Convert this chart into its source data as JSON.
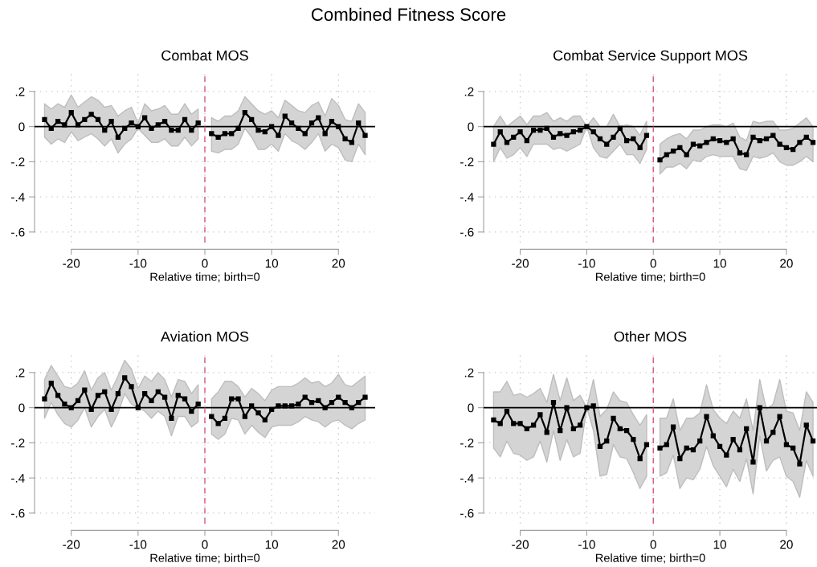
{
  "chart_data": [
    {
      "type": "line",
      "title": "Combat MOS",
      "xlabel": "Relative time; birth=0",
      "annotations": [
        "Combined Fitness Score"
      ],
      "grid": true,
      "marker": "square",
      "line_style": "solid",
      "x": [
        -24,
        -23,
        -22,
        -21,
        -20,
        -19,
        -18,
        -17,
        -16,
        -15,
        -14,
        -13,
        -12,
        -11,
        -10,
        -9,
        -8,
        -7,
        -6,
        -5,
        -4,
        -3,
        -2,
        -1,
        0,
        1,
        2,
        3,
        4,
        5,
        6,
        7,
        8,
        9,
        10,
        11,
        12,
        13,
        14,
        15,
        16,
        17,
        18,
        19,
        20,
        21,
        22,
        23,
        24
      ],
      "xlim": [
        -25.5,
        25.5
      ],
      "xticks": [
        -20,
        -10,
        0,
        10,
        20
      ],
      "ylim": [
        -0.66,
        0.3
      ],
      "yticks": [
        {
          "value": 0.2,
          "label": ".2"
        },
        0,
        {
          "value": -0.2,
          "label": "-.2"
        },
        {
          "value": -0.4,
          "label": "-.4"
        },
        {
          "value": -0.6,
          "label": "-.6"
        }
      ],
      "ref_lines": [
        {
          "axis": "y",
          "value": 0,
          "color": "#000000",
          "line_style": "solid"
        },
        {
          "axis": "x",
          "value": 0,
          "color": "#d9538a",
          "line_style": "dashed"
        }
      ],
      "series": [
        {
          "color": "#000000",
          "values": [
            0.04,
            -0.01,
            0.03,
            0.01,
            0.08,
            0.01,
            0.04,
            0.07,
            0.04,
            -0.02,
            0.03,
            -0.06,
            -0.01,
            0.02,
            0,
            0.05,
            -0.01,
            0.01,
            0.03,
            -0.02,
            -0.02,
            0.04,
            -0.02,
            0.02,
            null,
            -0.04,
            -0.06,
            -0.04,
            -0.04,
            -0.01,
            0.08,
            0.04,
            -0.02,
            -0.03,
            0,
            -0.05,
            0.06,
            0.02,
            -0.01,
            -0.04,
            0.02,
            0.05,
            -0.04,
            0.03,
            0,
            -0.07,
            -0.09,
            0.02,
            -0.05
          ],
          "upper": [
            0.13,
            0.1,
            0.13,
            0.11,
            0.18,
            0.11,
            0.14,
            0.17,
            0.15,
            0.11,
            0.12,
            0.06,
            0.09,
            0.11,
            0.02,
            0.13,
            0.09,
            0.1,
            0.12,
            0.07,
            0.07,
            0.13,
            0.07,
            0.1,
            null,
            0.05,
            0.03,
            0.06,
            0.06,
            0.09,
            0.17,
            0.13,
            0.09,
            0.07,
            0.09,
            0.05,
            0.15,
            0.12,
            0.09,
            0.08,
            0.12,
            0.14,
            0.06,
            0.16,
            0.12,
            0.04,
            0.03,
            0.13,
            0.08
          ],
          "lower": [
            -0.06,
            -0.1,
            -0.07,
            -0.09,
            -0.03,
            -0.08,
            -0.06,
            -0.04,
            -0.07,
            -0.11,
            -0.07,
            -0.15,
            -0.1,
            -0.07,
            -0.01,
            -0.05,
            -0.09,
            -0.09,
            -0.07,
            -0.11,
            -0.11,
            -0.06,
            -0.11,
            -0.07,
            null,
            -0.14,
            -0.15,
            -0.13,
            -0.13,
            -0.1,
            -0.01,
            -0.06,
            -0.13,
            -0.13,
            -0.1,
            -0.14,
            -0.04,
            -0.08,
            -0.1,
            -0.13,
            -0.09,
            -0.04,
            -0.14,
            -0.1,
            -0.12,
            -0.19,
            -0.2,
            -0.1,
            -0.16
          ]
        }
      ]
    },
    {
      "type": "line",
      "title": "Combat Service Support MOS",
      "xlabel": "Relative time; birth=0",
      "grid": true,
      "marker": "square",
      "line_style": "solid",
      "x": [
        -24,
        -23,
        -22,
        -21,
        -20,
        -19,
        -18,
        -17,
        -16,
        -15,
        -14,
        -13,
        -12,
        -11,
        -10,
        -9,
        -8,
        -7,
        -6,
        -5,
        -4,
        -3,
        -2,
        -1,
        0,
        1,
        2,
        3,
        4,
        5,
        6,
        7,
        8,
        9,
        10,
        11,
        12,
        13,
        14,
        15,
        16,
        17,
        18,
        19,
        20,
        21,
        22,
        23,
        24
      ],
      "xlim": [
        -25.5,
        24.6
      ],
      "xticks": [
        -20,
        -10,
        0,
        10,
        20
      ],
      "ylim": [
        -0.66,
        0.3
      ],
      "yticks": [
        {
          "value": 0.2,
          "label": ".2"
        },
        0,
        {
          "value": -0.2,
          "label": "-.2"
        },
        {
          "value": -0.4,
          "label": "-.4"
        },
        {
          "value": -0.6,
          "label": "-.6"
        }
      ],
      "ref_lines": [
        {
          "axis": "y",
          "value": 0,
          "color": "#000000",
          "line_style": "solid"
        },
        {
          "axis": "x",
          "value": 0,
          "color": "#d9538a",
          "line_style": "dashed"
        }
      ],
      "series": [
        {
          "color": "#000000",
          "values": [
            -0.1,
            -0.03,
            -0.09,
            -0.06,
            -0.03,
            -0.08,
            -0.02,
            -0.02,
            -0.01,
            -0.06,
            -0.04,
            -0.05,
            -0.03,
            -0.02,
            0,
            -0.03,
            -0.07,
            -0.1,
            -0.06,
            -0.01,
            -0.08,
            -0.07,
            -0.12,
            -0.05,
            null,
            -0.19,
            -0.16,
            -0.14,
            -0.12,
            -0.16,
            -0.1,
            -0.11,
            -0.09,
            -0.07,
            -0.08,
            -0.09,
            -0.07,
            -0.15,
            -0.16,
            -0.06,
            -0.08,
            -0.07,
            -0.05,
            -0.1,
            -0.12,
            -0.13,
            -0.09,
            -0.06,
            -0.09
          ],
          "upper": [
            0,
            0.06,
            0,
            0.03,
            0.06,
            0.01,
            0.06,
            0.06,
            0.08,
            0.03,
            0.05,
            0.03,
            0.06,
            0.06,
            0,
            0.05,
            0,
            0,
            0.07,
            0,
            0.01,
            0,
            -0.05,
            0.03,
            null,
            -0.1,
            -0.07,
            -0.05,
            -0.04,
            -0.07,
            -0.02,
            -0.02,
            0,
            0.01,
            0.01,
            0,
            0.02,
            -0.06,
            -0.08,
            0.03,
            0.02,
            0.03,
            0.03,
            -0.02,
            -0.02,
            -0.01,
            0.02,
            0.05,
            0
          ],
          "lower": [
            -0.2,
            -0.12,
            -0.18,
            -0.16,
            -0.12,
            -0.17,
            -0.1,
            -0.1,
            -0.1,
            -0.13,
            -0.12,
            -0.14,
            -0.12,
            -0.1,
            0,
            -0.12,
            -0.17,
            -0.18,
            -0.14,
            -0.1,
            -0.16,
            -0.16,
            -0.21,
            -0.13,
            null,
            -0.27,
            -0.23,
            -0.23,
            -0.21,
            -0.24,
            -0.19,
            -0.2,
            -0.17,
            -0.16,
            -0.17,
            -0.17,
            -0.17,
            -0.24,
            -0.25,
            -0.17,
            -0.18,
            -0.17,
            -0.15,
            -0.2,
            -0.22,
            -0.22,
            -0.2,
            -0.17,
            -0.2
          ]
        }
      ]
    },
    {
      "type": "line",
      "title": "Aviation MOS",
      "xlabel": "Relative time; birth=0",
      "grid": true,
      "marker": "square",
      "line_style": "solid",
      "x": [
        -24,
        -23,
        -22,
        -21,
        -20,
        -19,
        -18,
        -17,
        -16,
        -15,
        -14,
        -13,
        -12,
        -11,
        -10,
        -9,
        -8,
        -7,
        -6,
        -5,
        -4,
        -3,
        -2,
        -1,
        0,
        1,
        2,
        3,
        4,
        5,
        6,
        7,
        8,
        9,
        10,
        11,
        12,
        13,
        14,
        15,
        16,
        17,
        18,
        19,
        20,
        21,
        22,
        23,
        24
      ],
      "xlim": [
        -25.5,
        25.5
      ],
      "xticks": [
        -20,
        -10,
        0,
        10,
        20
      ],
      "ylim": [
        -0.66,
        0.3
      ],
      "yticks": [
        {
          "value": 0.2,
          "label": ".2"
        },
        0,
        {
          "value": -0.2,
          "label": "-.2"
        },
        {
          "value": -0.4,
          "label": "-.4"
        },
        {
          "value": -0.6,
          "label": "-.6"
        }
      ],
      "ref_lines": [
        {
          "axis": "y",
          "value": 0,
          "color": "#000000",
          "line_style": "solid"
        },
        {
          "axis": "x",
          "value": 0,
          "color": "#d9538a",
          "line_style": "dashed"
        }
      ],
      "series": [
        {
          "color": "#000000",
          "values": [
            0.05,
            0.14,
            0.07,
            0.02,
            0,
            0.04,
            0.1,
            -0.01,
            0.07,
            0.09,
            -0.01,
            0.08,
            0.17,
            0.12,
            0,
            0.08,
            0.04,
            0.09,
            0.06,
            -0.06,
            0.07,
            0.05,
            -0.02,
            0.02,
            null,
            -0.05,
            -0.09,
            -0.06,
            0.05,
            0.05,
            -0.05,
            0.01,
            -0.03,
            -0.07,
            -0.01,
            0.01,
            0.01,
            0.01,
            0.02,
            0.06,
            0.03,
            0.04,
            0,
            0.03,
            0.06,
            0.03,
            0,
            0.03,
            0.06
          ],
          "upper": [
            0.16,
            0.24,
            0.18,
            0.12,
            0.11,
            0.14,
            0.21,
            0.1,
            0.17,
            0.2,
            0.1,
            0.18,
            0.27,
            0.22,
            0.11,
            0.18,
            0.15,
            0.2,
            0.16,
            0.06,
            0.16,
            0.15,
            0.08,
            0.13,
            null,
            0.05,
            0.09,
            0.15,
            0.15,
            0.12,
            0.06,
            0.11,
            0.08,
            0.04,
            0.1,
            0.12,
            0.12,
            0.12,
            0.14,
            0.17,
            0.14,
            0.15,
            0.12,
            0.14,
            0.19,
            0.13,
            0.12,
            0.15,
            0.18
          ],
          "lower": [
            -0.06,
            0.03,
            -0.04,
            -0.09,
            -0.11,
            -0.07,
            0,
            -0.11,
            -0.05,
            -0.01,
            -0.11,
            -0.03,
            0.08,
            0.02,
            0,
            -0.02,
            -0.06,
            -0.02,
            -0.05,
            -0.16,
            -0.05,
            -0.05,
            -0.11,
            -0.08,
            null,
            -0.15,
            -0.18,
            -0.15,
            -0.06,
            -0.07,
            -0.15,
            -0.1,
            -0.14,
            -0.17,
            -0.11,
            -0.1,
            -0.1,
            -0.1,
            -0.08,
            -0.05,
            -0.07,
            -0.08,
            -0.11,
            -0.08,
            -0.07,
            -0.1,
            -0.12,
            -0.09,
            -0.07
          ]
        }
      ]
    },
    {
      "type": "line",
      "title": "Other MOS",
      "xlabel": "Relative time; birth=0",
      "grid": true,
      "marker": "square",
      "line_style": "solid",
      "x": [
        -24,
        -23,
        -22,
        -21,
        -20,
        -19,
        -18,
        -17,
        -16,
        -15,
        -14,
        -13,
        -12,
        -11,
        -10,
        -9,
        -8,
        -7,
        -6,
        -5,
        -4,
        -3,
        -2,
        -1,
        0,
        1,
        2,
        3,
        4,
        5,
        6,
        7,
        8,
        9,
        10,
        11,
        12,
        13,
        14,
        15,
        16,
        17,
        18,
        19,
        20,
        21,
        22,
        23,
        24
      ],
      "xlim": [
        -25.5,
        24.6
      ],
      "xticks": [
        -20,
        -10,
        0,
        10,
        20
      ],
      "ylim": [
        -0.66,
        0.3
      ],
      "yticks": [
        {
          "value": 0.2,
          "label": ".2"
        },
        0,
        {
          "value": -0.2,
          "label": "-.2"
        },
        {
          "value": -0.4,
          "label": "-.4"
        },
        {
          "value": -0.6,
          "label": "-.6"
        }
      ],
      "ref_lines": [
        {
          "axis": "y",
          "value": 0,
          "color": "#000000",
          "line_style": "solid"
        },
        {
          "axis": "x",
          "value": 0,
          "color": "#d9538a",
          "line_style": "dashed"
        }
      ],
      "series": [
        {
          "color": "#000000",
          "values": [
            -0.07,
            -0.09,
            -0.02,
            -0.09,
            -0.09,
            -0.12,
            -0.1,
            -0.04,
            -0.14,
            0.03,
            -0.13,
            0,
            -0.12,
            -0.1,
            0,
            0.01,
            -0.22,
            -0.19,
            -0.06,
            -0.12,
            -0.13,
            -0.18,
            -0.29,
            -0.21,
            null,
            -0.23,
            -0.21,
            -0.11,
            -0.29,
            -0.23,
            -0.24,
            -0.19,
            -0.05,
            -0.16,
            -0.22,
            -0.27,
            -0.18,
            -0.24,
            -0.12,
            -0.31,
            0,
            -0.19,
            -0.14,
            -0.05,
            -0.21,
            -0.23,
            -0.32,
            -0.1,
            -0.19
          ],
          "upper": [
            0.09,
            0.09,
            0.15,
            0.07,
            0.08,
            0.06,
            0.08,
            0.11,
            0.03,
            0.19,
            0.04,
            0.17,
            0.04,
            0.07,
            0,
            0.16,
            -0.05,
            -0.01,
            0.09,
            0.04,
            0.03,
            -0.04,
            -0.1,
            -0.04,
            null,
            -0.06,
            -0.06,
            0.05,
            -0.13,
            -0.06,
            -0.06,
            -0.03,
            0.13,
            -0.01,
            -0.06,
            -0.09,
            -0.02,
            -0.06,
            0.05,
            -0.13,
            0.16,
            -0.01,
            0.02,
            0.16,
            -0.02,
            -0.03,
            -0.13,
            0.09,
            0.03
          ],
          "lower": [
            -0.23,
            -0.28,
            -0.19,
            -0.26,
            -0.27,
            -0.3,
            -0.28,
            -0.19,
            -0.31,
            -0.13,
            -0.3,
            -0.18,
            -0.28,
            -0.26,
            0,
            -0.13,
            -0.39,
            -0.38,
            -0.21,
            -0.28,
            -0.29,
            -0.37,
            -0.46,
            -0.39,
            null,
            -0.39,
            -0.37,
            -0.27,
            -0.46,
            -0.4,
            -0.41,
            -0.35,
            -0.22,
            -0.33,
            -0.39,
            -0.45,
            -0.35,
            -0.42,
            -0.29,
            -0.49,
            -0.16,
            -0.36,
            -0.3,
            -0.28,
            -0.39,
            -0.42,
            -0.51,
            -0.3,
            -0.39
          ]
        }
      ]
    }
  ]
}
